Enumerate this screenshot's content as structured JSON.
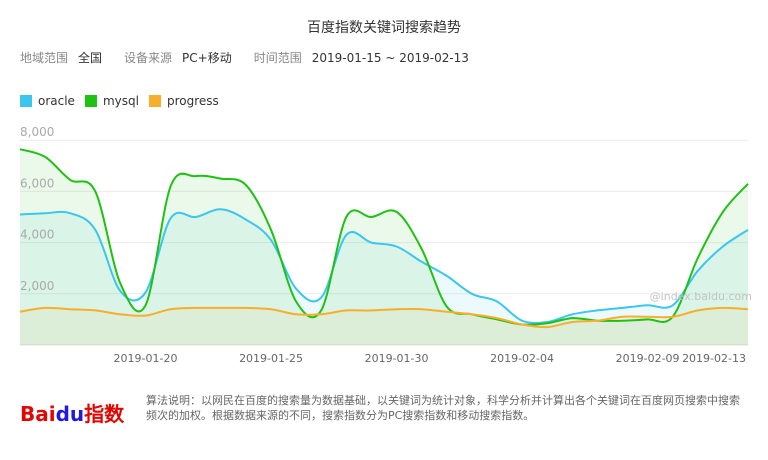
{
  "header": {
    "title": "百度指数关键词搜索趋势",
    "region_label": "地域范围",
    "region_value": "全国",
    "device_label": "设备来源",
    "device_value": "PC+移动",
    "time_label": "时间范围",
    "time_start": "2019-01-15",
    "time_sep": "~",
    "time_end": "2019-02-13"
  },
  "watermark": "@index.baidu.com",
  "footer": {
    "logo_bai": "Bai",
    "logo_du": "du",
    "logo_index": "指数",
    "note": "算法说明：以网民在百度的搜索量为数据基础，以关键词为统计对象，科学分析并计算出各个关键词在百度网页搜索中搜索频次的加权。根据数据来源的不同，搜索指数分为PC搜索指数和移动搜索指数。"
  },
  "chart_data": {
    "type": "area",
    "x_start": "2019-01-15",
    "x_end": "2019-02-13",
    "x_tick_labels": [
      "2019-01-20",
      "2019-01-25",
      "2019-01-30",
      "2019-02-04",
      "2019-02-09",
      "2019-02-13"
    ],
    "y_tick_labels": [
      "2,000",
      "4,000",
      "6,000",
      "8,000"
    ],
    "y_ticks": [
      2000,
      4000,
      6000,
      8000
    ],
    "ylim": [
      0,
      8400
    ],
    "legend_position": "top-left",
    "grid": true,
    "series": [
      {
        "name": "oracle",
        "color": "#3bc6ee",
        "x": [
          "2019-01-15",
          "2019-01-16",
          "2019-01-17",
          "2019-01-18",
          "2019-01-19",
          "2019-01-20",
          "2019-01-21",
          "2019-01-22",
          "2019-01-23",
          "2019-01-24",
          "2019-01-25",
          "2019-01-26",
          "2019-01-27",
          "2019-01-28",
          "2019-01-29",
          "2019-01-30",
          "2019-01-31",
          "2019-02-01",
          "2019-02-02",
          "2019-02-03",
          "2019-02-04",
          "2019-02-05",
          "2019-02-06",
          "2019-02-07",
          "2019-02-08",
          "2019-02-09",
          "2019-02-10",
          "2019-02-11",
          "2019-02-12",
          "2019-02-13"
        ],
        "values": [
          5100,
          5150,
          5150,
          4500,
          2100,
          2050,
          4950,
          5000,
          5300,
          4900,
          4100,
          2200,
          1850,
          4300,
          4000,
          3850,
          3250,
          2700,
          2000,
          1700,
          950,
          900,
          1200,
          1350,
          1450,
          1550,
          1550,
          2900,
          3850,
          4500
        ]
      },
      {
        "name": "mysql",
        "color": "#1fc113",
        "x": [
          "2019-01-15",
          "2019-01-16",
          "2019-01-17",
          "2019-01-18",
          "2019-01-19",
          "2019-01-20",
          "2019-01-21",
          "2019-01-22",
          "2019-01-23",
          "2019-01-24",
          "2019-01-25",
          "2019-01-26",
          "2019-01-27",
          "2019-01-28",
          "2019-01-29",
          "2019-01-30",
          "2019-01-31",
          "2019-02-01",
          "2019-02-02",
          "2019-02-03",
          "2019-02-04",
          "2019-02-05",
          "2019-02-06",
          "2019-02-07",
          "2019-02-08",
          "2019-02-09",
          "2019-02-10",
          "2019-02-11",
          "2019-02-12",
          "2019-02-13"
        ],
        "values": [
          7650,
          7350,
          6450,
          6000,
          2400,
          1550,
          6200,
          6600,
          6500,
          6250,
          4500,
          1700,
          1350,
          5000,
          5000,
          5200,
          3750,
          1500,
          1200,
          1000,
          800,
          850,
          1050,
          950,
          950,
          1000,
          1100,
          3400,
          5200,
          6300
        ]
      },
      {
        "name": "progress",
        "color": "#f8ae2a",
        "x": [
          "2019-01-15",
          "2019-01-16",
          "2019-01-17",
          "2019-01-18",
          "2019-01-19",
          "2019-01-20",
          "2019-01-21",
          "2019-01-22",
          "2019-01-23",
          "2019-01-24",
          "2019-01-25",
          "2019-01-26",
          "2019-01-27",
          "2019-01-28",
          "2019-01-29",
          "2019-01-30",
          "2019-01-31",
          "2019-02-01",
          "2019-02-02",
          "2019-02-03",
          "2019-02-04",
          "2019-02-05",
          "2019-02-06",
          "2019-02-07",
          "2019-02-08",
          "2019-02-09",
          "2019-02-10",
          "2019-02-11",
          "2019-02-12",
          "2019-02-13"
        ],
        "values": [
          1300,
          1450,
          1400,
          1350,
          1200,
          1150,
          1400,
          1450,
          1450,
          1450,
          1400,
          1200,
          1200,
          1350,
          1350,
          1400,
          1400,
          1300,
          1200,
          1050,
          800,
          700,
          900,
          950,
          1100,
          1100,
          1100,
          1350,
          1450,
          1400
        ]
      }
    ]
  }
}
